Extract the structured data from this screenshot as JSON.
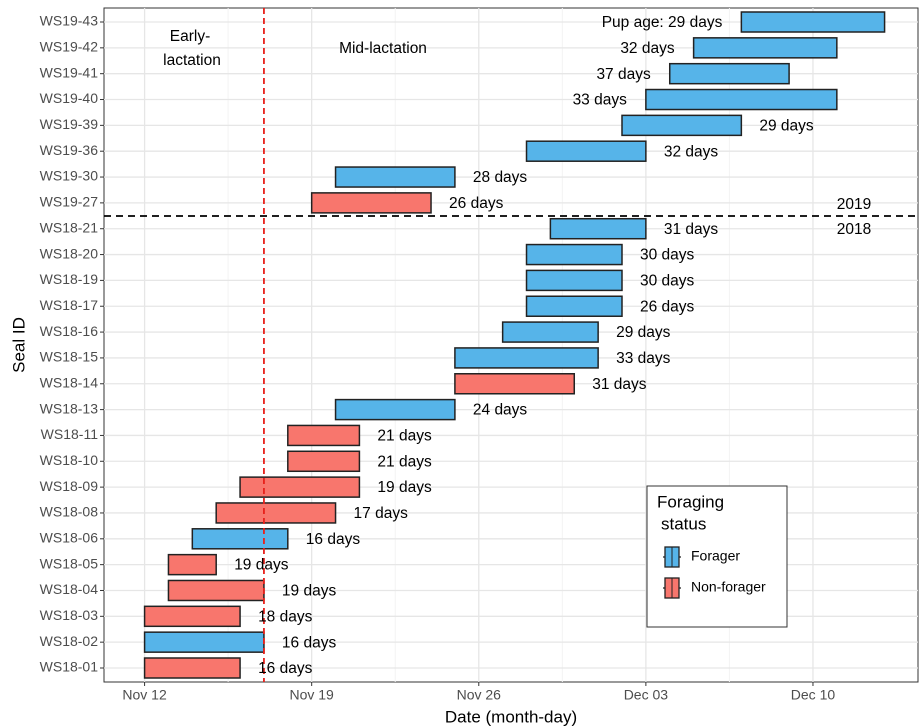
{
  "chart_data": {
    "type": "gantt",
    "x_label": "Date (month-day)",
    "y_label": "Seal ID",
    "categories": [
      "WS18-01",
      "WS18-02",
      "WS18-03",
      "WS18-04",
      "WS18-05",
      "WS18-06",
      "WS18-08",
      "WS18-09",
      "WS18-10",
      "WS18-11",
      "WS18-13",
      "WS18-14",
      "WS18-15",
      "WS18-16",
      "WS18-17",
      "WS18-19",
      "WS18-20",
      "WS18-21",
      "WS19-27",
      "WS19-30",
      "WS19-36",
      "WS19-39",
      "WS19-40",
      "WS19-41",
      "WS19-42",
      "WS19-43"
    ],
    "series": [
      {
        "name": "Forager",
        "color": "#56B4E9",
        "start": [
          null,
          12,
          null,
          null,
          null,
          14,
          null,
          null,
          null,
          null,
          20,
          null,
          25,
          27,
          28,
          28,
          28,
          29,
          null,
          20,
          28,
          32,
          33,
          34,
          35,
          37
        ],
        "end": [
          null,
          17,
          null,
          null,
          null,
          18,
          null,
          null,
          null,
          null,
          25,
          null,
          31,
          31,
          32,
          32,
          32,
          33,
          null,
          25,
          33,
          37,
          41,
          39,
          41,
          43
        ]
      },
      {
        "name": "Non-forager",
        "color": "#F8766D",
        "start": [
          12,
          null,
          12,
          13,
          13,
          null,
          15,
          16,
          18,
          18,
          null,
          25,
          null,
          null,
          null,
          null,
          null,
          null,
          19,
          null,
          null,
          null,
          null,
          null,
          null,
          null
        ],
        "end": [
          16,
          null,
          16,
          17,
          15,
          null,
          20,
          21,
          21,
          21,
          null,
          30,
          null,
          null,
          null,
          null,
          null,
          null,
          24,
          null,
          null,
          null,
          null,
          null,
          null,
          null
        ]
      }
    ],
    "value_labels": [
      "16 days",
      "16 days",
      "18 days",
      "19 days",
      "19 days",
      "16 days",
      "17 days",
      "19 days",
      "21 days",
      "21 days",
      "24 days",
      "31 days",
      "33 days",
      "29 days",
      "26 days",
      "30 days",
      "30 days",
      "31 days",
      "26 days",
      "28 days",
      "32 days",
      "29 days",
      "33 days",
      "37 days",
      "32 days",
      "Pup age: 29 days"
    ],
    "xlim": [
      10.3,
      44.4
    ],
    "xticks": [
      {
        "value": 12,
        "label": "Nov 12"
      },
      {
        "value": 19,
        "label": "Nov 19"
      },
      {
        "value": 26,
        "label": "Nov 26"
      },
      {
        "value": 33,
        "label": "Dec 03"
      },
      {
        "value": 40,
        "label": "Dec 10"
      }
    ],
    "vline": 17,
    "annotations": {
      "early": [
        "Early-",
        "lactation"
      ],
      "mid": "Mid-lactation",
      "upper_year": "2019",
      "lower_year": "2018"
    },
    "legend_title": [
      "Foraging",
      "status"
    ],
    "grid": true
  }
}
